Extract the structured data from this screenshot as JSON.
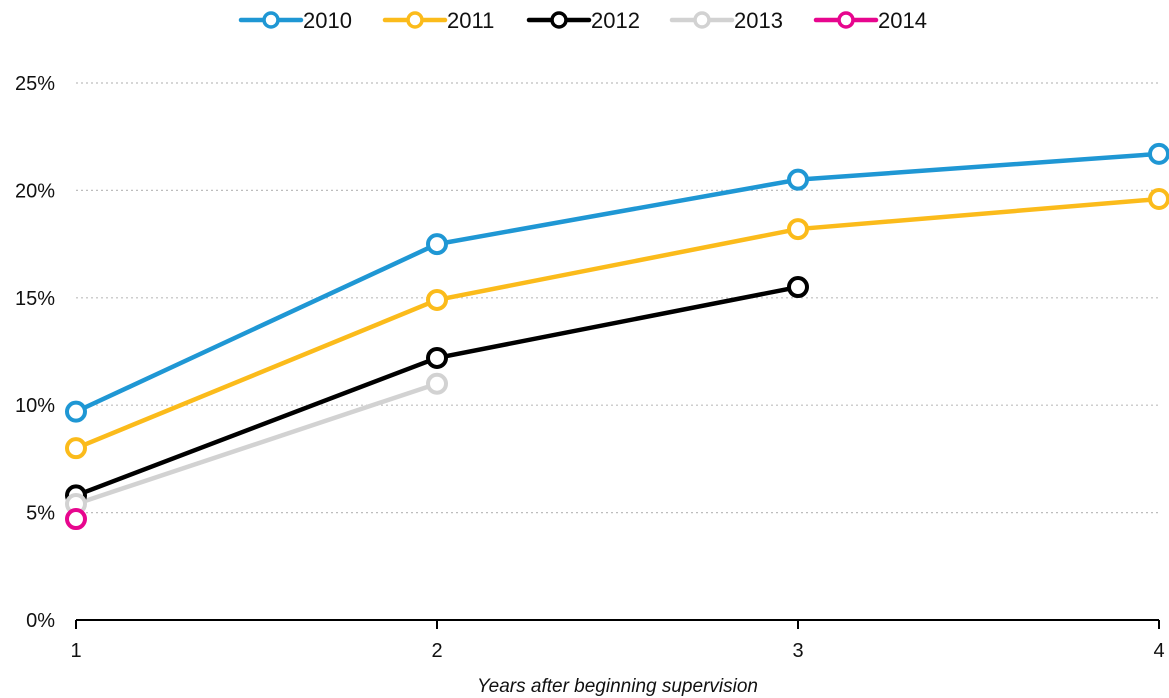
{
  "chart_data": {
    "type": "line",
    "title": "",
    "xlabel": "Years after beginning supervision",
    "ylabel": "",
    "x": [
      1,
      2,
      3,
      4
    ],
    "x_tick_labels": [
      "1",
      "2",
      "3",
      "4"
    ],
    "y_tick_labels": [
      "0%",
      "5%",
      "10%",
      "15%",
      "20%",
      "25%"
    ],
    "ylim": [
      0,
      25
    ],
    "y_unit": "%",
    "grid": true,
    "legend_position": "top-center",
    "series": [
      {
        "name": "2010",
        "color": "#1f97d4",
        "values": [
          9.7,
          17.5,
          20.5,
          21.7
        ]
      },
      {
        "name": "2011",
        "color": "#fbbb1b",
        "values": [
          8.0,
          14.9,
          18.2,
          19.6
        ]
      },
      {
        "name": "2012",
        "color": "#000000",
        "values": [
          5.8,
          12.2,
          15.5,
          null
        ]
      },
      {
        "name": "2013",
        "color": "#d2d2d2",
        "values": [
          5.4,
          11.0,
          null,
          null
        ]
      },
      {
        "name": "2014",
        "color": "#e7068e",
        "values": [
          4.7,
          null,
          null,
          null
        ]
      }
    ]
  }
}
